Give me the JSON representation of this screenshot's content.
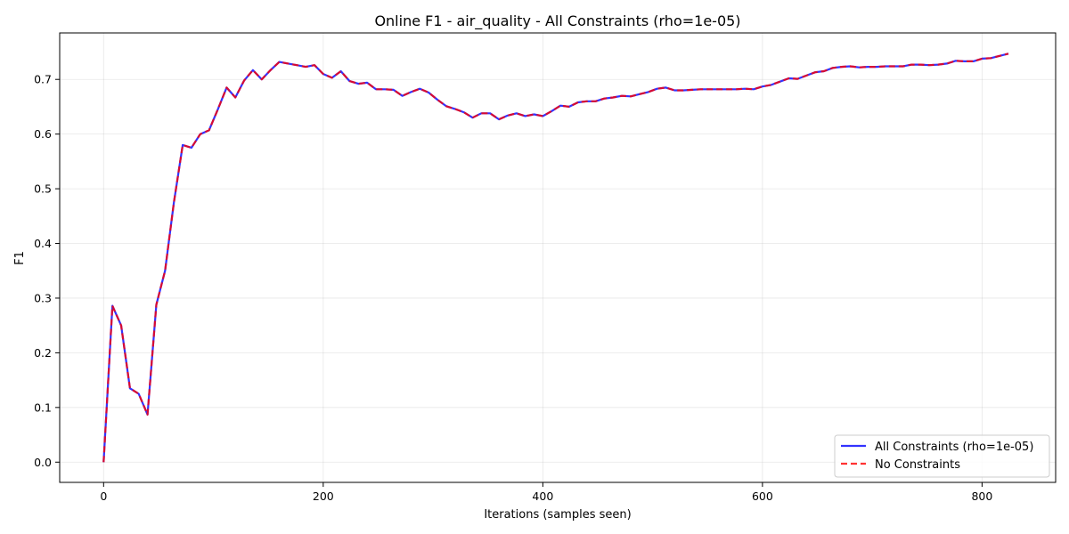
{
  "chart_data": {
    "type": "line",
    "title": "Online F1 - air_quality - All Constraints (rho=1e-05)",
    "xlabel": "Iterations (samples seen)",
    "ylabel": "F1",
    "xlim": [
      -40,
      867
    ],
    "ylim": [
      -0.037,
      0.785
    ],
    "xticks": [
      0,
      200,
      400,
      600,
      800
    ],
    "yticks": [
      0.0,
      0.1,
      0.2,
      0.3,
      0.4,
      0.5,
      0.6,
      0.7
    ],
    "grid": true,
    "legend_position": "lower-right",
    "series": [
      {
        "name": "All Constraints (rho=1e-05)",
        "color": "#0000ff",
        "style": "solid",
        "x": [
          0,
          8,
          16,
          24,
          32,
          40,
          48,
          56,
          64,
          72,
          80,
          88,
          96,
          104,
          112,
          120,
          128,
          136,
          144,
          152,
          160,
          168,
          176,
          184,
          192,
          200,
          208,
          216,
          224,
          232,
          240,
          248,
          256,
          264,
          272,
          280,
          288,
          296,
          304,
          312,
          320,
          328,
          336,
          344,
          352,
          360,
          368,
          376,
          384,
          392,
          400,
          408,
          416,
          424,
          432,
          440,
          448,
          456,
          464,
          472,
          480,
          488,
          496,
          504,
          512,
          520,
          528,
          536,
          544,
          552,
          560,
          568,
          576,
          584,
          592,
          600,
          608,
          616,
          624,
          632,
          640,
          648,
          656,
          664,
          672,
          680,
          688,
          696,
          704,
          712,
          720,
          728,
          736,
          744,
          752,
          760,
          768,
          776,
          784,
          792,
          800,
          808,
          816,
          824
        ],
        "y": [
          0.0,
          0.286,
          0.25,
          0.135,
          0.125,
          0.087,
          0.288,
          0.35,
          0.475,
          0.58,
          0.575,
          0.6,
          0.607,
          0.645,
          0.685,
          0.667,
          0.698,
          0.717,
          0.7,
          0.717,
          0.732,
          0.729,
          0.726,
          0.723,
          0.726,
          0.71,
          0.703,
          0.715,
          0.697,
          0.692,
          0.694,
          0.682,
          0.682,
          0.681,
          0.67,
          0.677,
          0.683,
          0.676,
          0.663,
          0.651,
          0.646,
          0.64,
          0.63,
          0.638,
          0.638,
          0.627,
          0.634,
          0.638,
          0.633,
          0.636,
          0.633,
          0.642,
          0.652,
          0.65,
          0.658,
          0.66,
          0.66,
          0.665,
          0.667,
          0.67,
          0.669,
          0.673,
          0.677,
          0.683,
          0.685,
          0.68,
          0.68,
          0.681,
          0.682,
          0.682,
          0.682,
          0.682,
          0.682,
          0.683,
          0.682,
          0.687,
          0.69,
          0.696,
          0.702,
          0.701,
          0.707,
          0.713,
          0.715,
          0.721,
          0.723,
          0.724,
          0.722,
          0.723,
          0.723,
          0.724,
          0.724,
          0.724,
          0.727,
          0.727,
          0.726,
          0.727,
          0.729,
          0.734,
          0.733,
          0.733,
          0.738,
          0.739,
          0.743,
          0.747
        ]
      },
      {
        "name": "No Constraints",
        "color": "#ff0000",
        "style": "dashed",
        "x": [
          0,
          8,
          16,
          24,
          32,
          40,
          48,
          56,
          64,
          72,
          80,
          88,
          96,
          104,
          112,
          120,
          128,
          136,
          144,
          152,
          160,
          168,
          176,
          184,
          192,
          200,
          208,
          216,
          224,
          232,
          240,
          248,
          256,
          264,
          272,
          280,
          288,
          296,
          304,
          312,
          320,
          328,
          336,
          344,
          352,
          360,
          368,
          376,
          384,
          392,
          400,
          408,
          416,
          424,
          432,
          440,
          448,
          456,
          464,
          472,
          480,
          488,
          496,
          504,
          512,
          520,
          528,
          536,
          544,
          552,
          560,
          568,
          576,
          584,
          592,
          600,
          608,
          616,
          624,
          632,
          640,
          648,
          656,
          664,
          672,
          680,
          688,
          696,
          704,
          712,
          720,
          728,
          736,
          744,
          752,
          760,
          768,
          776,
          784,
          792,
          800,
          808,
          816,
          824
        ],
        "y": [
          0.0,
          0.286,
          0.25,
          0.135,
          0.125,
          0.087,
          0.288,
          0.35,
          0.475,
          0.58,
          0.575,
          0.6,
          0.607,
          0.645,
          0.685,
          0.667,
          0.698,
          0.717,
          0.7,
          0.717,
          0.732,
          0.729,
          0.726,
          0.723,
          0.726,
          0.71,
          0.703,
          0.715,
          0.697,
          0.692,
          0.694,
          0.682,
          0.682,
          0.681,
          0.67,
          0.677,
          0.683,
          0.676,
          0.663,
          0.651,
          0.646,
          0.64,
          0.63,
          0.638,
          0.638,
          0.627,
          0.634,
          0.638,
          0.633,
          0.636,
          0.633,
          0.642,
          0.652,
          0.65,
          0.658,
          0.66,
          0.66,
          0.665,
          0.667,
          0.67,
          0.669,
          0.673,
          0.677,
          0.683,
          0.685,
          0.68,
          0.68,
          0.681,
          0.682,
          0.682,
          0.682,
          0.682,
          0.682,
          0.683,
          0.682,
          0.687,
          0.69,
          0.696,
          0.702,
          0.701,
          0.707,
          0.713,
          0.715,
          0.721,
          0.723,
          0.724,
          0.722,
          0.723,
          0.723,
          0.724,
          0.724,
          0.724,
          0.727,
          0.727,
          0.726,
          0.727,
          0.729,
          0.734,
          0.733,
          0.733,
          0.738,
          0.739,
          0.743,
          0.747
        ]
      }
    ]
  }
}
